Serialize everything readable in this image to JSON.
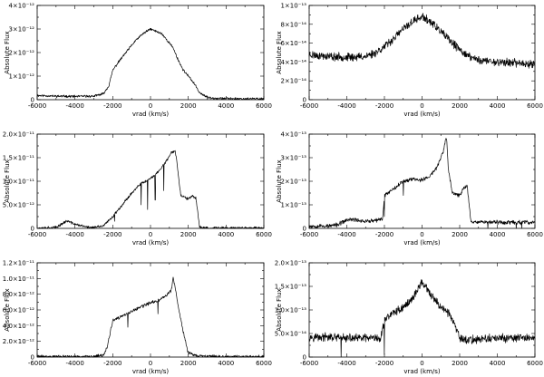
{
  "chart_data": [
    {
      "type": "line",
      "xlabel": "vrad (km/s)",
      "ylabel": "Absolute Flux",
      "xlim": [
        -6000,
        6000
      ],
      "ylim": [
        0,
        4e-12
      ],
      "xticks": [
        -6000,
        -4000,
        -2000,
        0,
        2000,
        4000,
        6000
      ],
      "yticks": [
        {
          "v": 0,
          "t": "0"
        },
        {
          "v": 1e-12,
          "t": "1×10⁻¹²"
        },
        {
          "v": 2e-12,
          "t": "2×10⁻¹²"
        },
        {
          "v": 3e-12,
          "t": "3×10⁻¹²"
        },
        {
          "v": 4e-12,
          "t": "4×10⁻¹²"
        }
      ],
      "series": [
        {
          "x": [
            -6000,
            -5000,
            -4000,
            -3000,
            -2500,
            -2200,
            -2000,
            -1600,
            -1200,
            -800,
            -400,
            0,
            300,
            600,
            900,
            1200,
            1400,
            1700,
            2000,
            2300,
            2600,
            3000,
            3500,
            4000,
            5000,
            6000
          ],
          "values": [
            1.8e-13,
            1.5e-13,
            1.4e-13,
            1.5e-13,
            2.5e-13,
            6e-13,
            1.25e-12,
            1.7e-12,
            2.1e-12,
            2.5e-12,
            2.8e-12,
            3e-12,
            2.9e-12,
            2.8e-12,
            2.5e-12,
            2.2e-12,
            1.8e-12,
            1.3e-12,
            1e-12,
            7e-13,
            3e-13,
            1e-13,
            6e-14,
            5e-14,
            4e-14,
            4e-14
          ],
          "noise": 4e-14,
          "seed": 11
        }
      ]
    },
    {
      "type": "line",
      "xlabel": "vrad (km/s)",
      "ylabel": "Absolute Flux",
      "xlim": [
        -6000,
        6000
      ],
      "ylim": [
        0,
        1e-13
      ],
      "xticks": [
        -6000,
        -4000,
        -2000,
        0,
        2000,
        4000,
        6000
      ],
      "yticks": [
        {
          "v": 0,
          "t": "0"
        },
        {
          "v": 2e-14,
          "t": "2×10⁻¹⁴"
        },
        {
          "v": 4e-14,
          "t": "4×10⁻¹⁴"
        },
        {
          "v": 6e-14,
          "t": "6×10⁻¹⁴"
        },
        {
          "v": 8e-14,
          "t": "8×10⁻¹⁴"
        },
        {
          "v": 1e-13,
          "t": "1×10⁻¹³"
        }
      ],
      "series": [
        {
          "x": [
            -6000,
            -5000,
            -4000,
            -3000,
            -2500,
            -2000,
            -1500,
            -1000,
            -500,
            0,
            500,
            1000,
            1500,
            2000,
            2500,
            3000,
            4000,
            5000,
            6000
          ],
          "values": [
            4.8e-14,
            4.6e-14,
            4.5e-14,
            4.6e-14,
            5e-14,
            5.6e-14,
            6.5e-14,
            7.5e-14,
            8.3e-14,
            8.8e-14,
            8.2e-14,
            7.2e-14,
            6.2e-14,
            5.3e-14,
            4.6e-14,
            4.2e-14,
            4e-14,
            3.9e-14,
            3.8e-14
          ],
          "noise": 3.5e-15,
          "seed": 23
        }
      ]
    },
    {
      "type": "line",
      "xlabel": "vrad (km/s)",
      "ylabel": "Absolute Flux",
      "xlim": [
        -6000,
        6000
      ],
      "ylim": [
        0,
        2e-11
      ],
      "xticks": [
        -6000,
        -4000,
        -2000,
        0,
        2000,
        4000,
        6000
      ],
      "yticks": [
        {
          "v": 0,
          "t": "0"
        },
        {
          "v": 5e-12,
          "t": "5.0×10⁻¹²"
        },
        {
          "v": 1e-11,
          "t": "1.0×10⁻¹¹"
        },
        {
          "v": 1.5e-11,
          "t": "1.5×10⁻¹¹"
        },
        {
          "v": 2e-11,
          "t": "2.0×10⁻¹¹"
        }
      ],
      "series": [
        {
          "x": [
            -6000,
            -5000,
            -4600,
            -4400,
            -4200,
            -4000,
            -3800,
            -3400,
            -3000,
            -2500,
            -2000,
            -1500,
            -1000,
            -500,
            0,
            400,
            800,
            1100,
            1300,
            1400,
            1600,
            2000,
            2200,
            2400,
            2600,
            3000,
            4000,
            6000
          ],
          "values": [
            1e-13,
            2e-13,
            1.2e-12,
            1.6e-12,
            1.2e-12,
            9e-13,
            7e-13,
            3e-13,
            2e-13,
            5e-13,
            2.5e-12,
            5e-12,
            7.5e-12,
            9.5e-12,
            1.05e-11,
            1.2e-11,
            1.4e-11,
            1.6e-11,
            1.65e-11,
            1.4e-11,
            7e-12,
            6.2e-12,
            6.8e-12,
            6.5e-12,
            3e-13,
            1e-13,
            1e-13,
            1e-13
          ],
          "noise": 2.2e-13,
          "seed": 37,
          "dips": [
            {
              "x": -1900,
              "to": 1.5e-12
            },
            {
              "x": -500,
              "to": 5e-12
            },
            {
              "x": -150,
              "to": 4e-12
            },
            {
              "x": 250,
              "to": 6e-12
            },
            {
              "x": 700,
              "to": 8e-12
            }
          ]
        }
      ]
    },
    {
      "type": "line",
      "xlabel": "vrad (km/s)",
      "ylabel": "Absolute Flux",
      "xlim": [
        -6000,
        6000
      ],
      "ylim": [
        0,
        4e-13
      ],
      "xticks": [
        -6000,
        -4000,
        -2000,
        0,
        2000,
        4000,
        6000
      ],
      "yticks": [
        {
          "v": 0,
          "t": "0"
        },
        {
          "v": 1e-13,
          "t": "1×10⁻¹³"
        },
        {
          "v": 2e-13,
          "t": "2×10⁻¹³"
        },
        {
          "v": 3e-13,
          "t": "3×10⁻¹³"
        },
        {
          "v": 4e-13,
          "t": "4×10⁻¹³"
        }
      ],
      "series": [
        {
          "x": [
            -6000,
            -5000,
            -4500,
            -4000,
            -3700,
            -3000,
            -2500,
            -2100,
            -2000,
            -1500,
            -1000,
            -500,
            0,
            400,
            800,
            1100,
            1300,
            1400,
            1600,
            2000,
            2200,
            2400,
            2600,
            3000,
            4000,
            5000,
            6000
          ],
          "values": [
            1e-14,
            1e-14,
            1.5e-14,
            3.5e-14,
            3.8e-14,
            3e-14,
            3.2e-14,
            4e-14,
            1.4e-13,
            1.7e-13,
            2e-13,
            2.1e-13,
            2.05e-13,
            2.2e-13,
            2.6e-13,
            3.2e-13,
            3.9e-13,
            2.5e-13,
            1.5e-13,
            1.4e-13,
            1.7e-13,
            1.8e-13,
            3e-14,
            2.8e-14,
            2.6e-14,
            2.5e-14,
            2.5e-14
          ],
          "noise": 7e-15,
          "seed": 53,
          "dips": [
            {
              "x": -2000,
              "to": 5e-14
            },
            {
              "x": -1000,
              "to": 1.4e-13
            },
            {
              "x": 3500,
              "to": 0
            },
            {
              "x": 5000,
              "to": 0
            },
            {
              "x": 5300,
              "to": 0
            }
          ]
        }
      ]
    },
    {
      "type": "line",
      "xlabel": "vrad (km/s)",
      "ylabel": "Absolute Flux",
      "xlim": [
        -6000,
        6000
      ],
      "ylim": [
        0,
        1.2e-11
      ],
      "xticks": [
        -6000,
        -4000,
        -2000,
        0,
        2000,
        4000,
        6000
      ],
      "yticks": [
        {
          "v": 0,
          "t": "0"
        },
        {
          "v": 2e-12,
          "t": "2.0×10⁻¹²"
        },
        {
          "v": 4e-12,
          "t": "4.0×10⁻¹²"
        },
        {
          "v": 6e-12,
          "t": "6.0×10⁻¹²"
        },
        {
          "v": 8e-12,
          "t": "8.0×10⁻¹²"
        },
        {
          "v": 1e-11,
          "t": "1.0×10⁻¹¹"
        },
        {
          "v": 1.2e-11,
          "t": "1.2×10⁻¹¹"
        }
      ],
      "series": [
        {
          "x": [
            -6000,
            -4000,
            -3000,
            -2500,
            -2300,
            -2100,
            -2000,
            -1500,
            -1000,
            -500,
            0,
            500,
            800,
            1100,
            1200,
            1300,
            1500,
            1800,
            2000,
            2500,
            4000,
            6000
          ],
          "values": [
            5e-14,
            4e-14,
            5e-14,
            2e-13,
            1.2e-12,
            3.5e-12,
            4.6e-12,
            5.2e-12,
            5.8e-12,
            6.4e-12,
            6.9e-12,
            7.3e-12,
            7.8e-12,
            8.5e-12,
            1e-11,
            9e-12,
            6e-12,
            2.5e-12,
            5e-13,
            1e-13,
            5e-14,
            5e-14
          ],
          "noise": 1.7e-13,
          "seed": 71,
          "dips": [
            {
              "x": -1200,
              "to": 3.8e-12
            },
            {
              "x": 400,
              "to": 5.5e-12
            }
          ]
        }
      ]
    },
    {
      "type": "line",
      "xlabel": "vrad (km/s)",
      "ylabel": "Absolute Flux",
      "xlim": [
        -6000,
        6000
      ],
      "ylim": [
        0,
        2e-13
      ],
      "xticks": [
        -6000,
        -4000,
        -2000,
        0,
        2000,
        4000,
        6000
      ],
      "yticks": [
        {
          "v": 0,
          "t": "0"
        },
        {
          "v": 5e-14,
          "t": "5.0×10⁻¹⁴"
        },
        {
          "v": 1e-13,
          "t": "1.0×10⁻¹³"
        },
        {
          "v": 1.5e-13,
          "t": "1.5×10⁻¹³"
        },
        {
          "v": 2e-13,
          "t": "2.0×10⁻¹³"
        }
      ],
      "series": [
        {
          "x": [
            -6000,
            -5000,
            -4000,
            -3000,
            -2200,
            -2000,
            -1500,
            -1000,
            -500,
            0,
            400,
            800,
            1200,
            1500,
            1700,
            2000,
            2400,
            3000,
            4000,
            5000,
            6000
          ],
          "values": [
            4.3e-14,
            4.2e-14,
            4e-14,
            4e-14,
            3.8e-14,
            8e-14,
            9.5e-14,
            1.05e-13,
            1.25e-13,
            1.6e-13,
            1.35e-13,
            1.15e-13,
            1e-13,
            9e-14,
            7e-14,
            4e-14,
            3.6e-14,
            3.8e-14,
            4e-14,
            4e-14,
            4.1e-14
          ],
          "noise": 7e-15,
          "seed": 97,
          "dips": [
            {
              "x": -4300,
              "to": 0
            },
            {
              "x": -2000,
              "to": 5e-15
            }
          ]
        }
      ]
    }
  ]
}
